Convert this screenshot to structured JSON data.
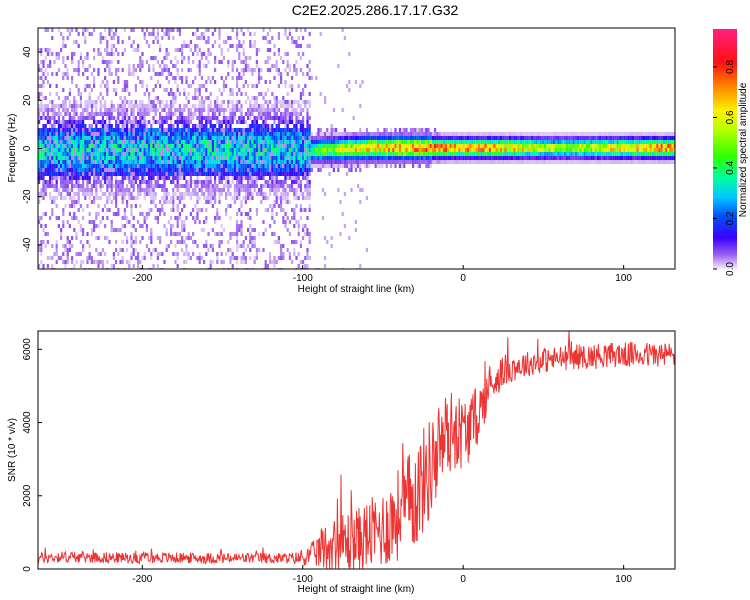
{
  "title": "C2E2.2025.286.17.17.G32",
  "chart_data": [
    {
      "type": "heatmap",
      "xlabel": "Height of straight line (km)",
      "ylabel": "Frequency (Hz)",
      "xlim": [
        -265,
        132
      ],
      "ylim": [
        -50,
        50
      ],
      "xticks": [
        -200,
        -100,
        0,
        100
      ],
      "yticks": [
        -40,
        -20,
        0,
        20,
        40
      ],
      "colorbar": {
        "label": "Normalized spectral amplitude",
        "ticks": [
          0.0,
          0.2,
          0.4,
          0.6,
          0.8
        ],
        "range": [
          0,
          0.95
        ]
      },
      "ridge": {
        "description_points_x": [
          -265,
          -100,
          -90,
          -60,
          -40,
          -20,
          0,
          20,
          60,
          100,
          132
        ],
        "center_freq": [
          0,
          0,
          0,
          1,
          1,
          1,
          1,
          1,
          1,
          1,
          1
        ],
        "peak_amplitude": [
          0.3,
          0.35,
          0.55,
          0.75,
          0.8,
          0.85,
          0.8,
          0.8,
          0.6,
          0.75,
          0.85
        ]
      }
    },
    {
      "type": "line",
      "xlabel": "Height of straight line (km)",
      "ylabel": "SNR (10 * v/v)",
      "xlim": [
        -265,
        132
      ],
      "ylim": [
        0,
        6500
      ],
      "xticks": [
        -200,
        -100,
        0,
        100
      ],
      "yticks": [
        0,
        2000,
        4000,
        6000
      ],
      "color": "#ee3333",
      "series": [
        {
          "x": [
            -265,
            -250,
            -230,
            -210,
            -190,
            -170,
            -150,
            -130,
            -110,
            -100,
            -95,
            -90,
            -85,
            -80,
            -75,
            -70,
            -65,
            -60,
            -55,
            -50,
            -45,
            -40,
            -35,
            -30,
            -25,
            -20,
            -15,
            -10,
            -5,
            0,
            5,
            10,
            15,
            20,
            25,
            30,
            40,
            50,
            60,
            70,
            80,
            90,
            100,
            110,
            120,
            132
          ],
          "values": [
            300,
            330,
            320,
            300,
            310,
            300,
            290,
            300,
            290,
            300,
            380,
            500,
            600,
            650,
            700,
            750,
            800,
            900,
            1000,
            1100,
            1300,
            1500,
            1700,
            2000,
            2400,
            2800,
            3300,
            3700,
            3800,
            3700,
            3900,
            4300,
            4800,
            5200,
            5400,
            5500,
            5600,
            5700,
            5750,
            5800,
            5800,
            5850,
            5850,
            5850,
            5850,
            5850
          ],
          "noise_amplitude": [
            150,
            160,
            150,
            150,
            150,
            150,
            150,
            150,
            150,
            200,
            300,
            500,
            700,
            800,
            900,
            900,
            900,
            1000,
            1000,
            1100,
            1200,
            1300,
            1400,
            1500,
            1500,
            1400,
            1300,
            1200,
            1100,
            1000,
            900,
            800,
            600,
            500,
            450,
            400,
            350,
            350,
            350,
            350,
            350,
            350,
            350,
            350,
            350,
            350
          ]
        }
      ]
    }
  ]
}
